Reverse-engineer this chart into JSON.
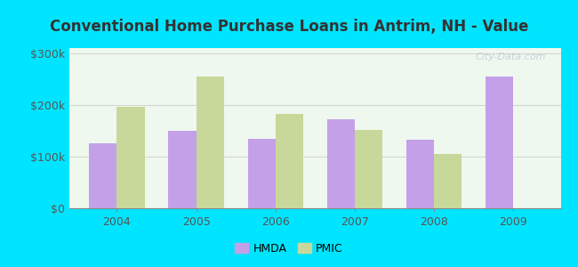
{
  "title": "Conventional Home Purchase Loans in Antrim, NH - Value",
  "years": [
    2004,
    2005,
    2006,
    2007,
    2008,
    2009
  ],
  "hmda_values": [
    125000,
    150000,
    135000,
    172000,
    132000,
    255000
  ],
  "pmic_values": [
    197000,
    255000,
    182000,
    152000,
    105000,
    null
  ],
  "hmda_color": "#c4a0e8",
  "pmic_color": "#c8d89a",
  "background_outer": "#00e5ff",
  "background_inner": "#eef8ee",
  "bar_width": 0.35,
  "ylim": [
    0,
    310000
  ],
  "yticks": [
    0,
    100000,
    200000,
    300000
  ],
  "ytick_labels": [
    "$0",
    "$100k",
    "$200k",
    "$300k"
  ],
  "title_fontsize": 12,
  "title_color": "#333333",
  "watermark": "City-Data.com",
  "axis_label_color": "#555555",
  "tick_label_fontsize": 9
}
